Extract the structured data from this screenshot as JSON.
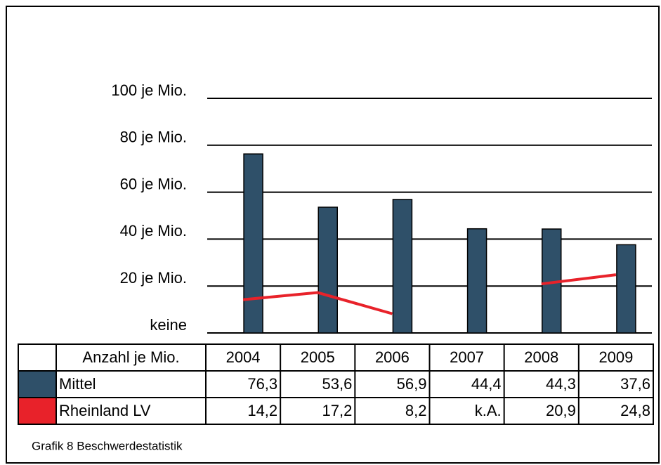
{
  "chart_data": {
    "type": "bar-line-table",
    "categories": [
      "2004",
      "2005",
      "2006",
      "2007",
      "2008",
      "2009"
    ],
    "table_header": "Anzahl je Mio.",
    "series": [
      {
        "name": "Mittel",
        "type": "bar",
        "color": "#2f5069",
        "values": [
          76.3,
          53.6,
          56.9,
          44.4,
          44.3,
          37.6
        ],
        "value_labels": [
          "76,3",
          "53,6",
          "56,9",
          "44,4",
          "44,3",
          "37,6"
        ]
      },
      {
        "name": "Rheinland LV",
        "type": "line",
        "color": "#e8222a",
        "values": [
          14.2,
          17.2,
          8.2,
          null,
          20.9,
          24.8
        ],
        "value_labels": [
          "14,2",
          "17,2",
          "8,2",
          "k.A.",
          "20,9",
          "24,8"
        ]
      }
    ],
    "ylim": [
      0,
      100
    ],
    "yticks": [
      {
        "value": 0,
        "label": "keine"
      },
      {
        "value": 20,
        "label": "20 je Mio."
      },
      {
        "value": 40,
        "label": "40 je Mio."
      },
      {
        "value": 60,
        "label": "60 je Mio."
      },
      {
        "value": 80,
        "label": "80 je Mio."
      },
      {
        "value": 100,
        "label": "100 je Mio."
      }
    ],
    "grid": true,
    "caption": "Grafik 8 Beschwerdestatistik"
  }
}
